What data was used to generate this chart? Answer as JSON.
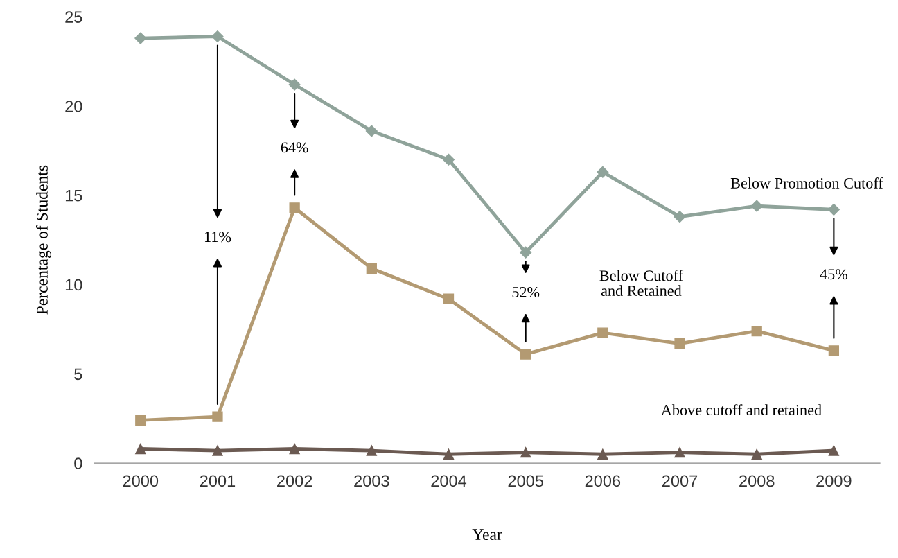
{
  "chart_data": {
    "type": "line",
    "xlabel": "Year",
    "ylabel": "Percentage of Students",
    "categories": [
      "2000",
      "2001",
      "2002",
      "2003",
      "2004",
      "2005",
      "2006",
      "2007",
      "2008",
      "2009"
    ],
    "series": [
      {
        "name": "Below Promotion Cutoff",
        "color": "#8fa39a",
        "marker": "diamond",
        "values": [
          23.8,
          23.9,
          21.2,
          18.6,
          17.0,
          11.8,
          16.3,
          13.8,
          14.4,
          14.2
        ]
      },
      {
        "name": "Below Cutoff and Retained",
        "color": "#b39a72",
        "marker": "square",
        "values": [
          2.4,
          2.6,
          14.3,
          10.9,
          9.2,
          6.1,
          7.3,
          6.7,
          7.4,
          6.3
        ]
      },
      {
        "name": "Above cutoff and retained",
        "color": "#6b5a52",
        "marker": "triangle",
        "values": [
          0.8,
          0.7,
          0.8,
          0.7,
          0.5,
          0.6,
          0.5,
          0.6,
          0.5,
          0.7
        ]
      }
    ],
    "annotations": [
      "11%",
      "64%",
      "52%",
      "45%"
    ],
    "ylim": [
      0,
      25
    ],
    "yticks": [
      0,
      5,
      10,
      15,
      20,
      25
    ],
    "grid": false,
    "legend": false
  }
}
